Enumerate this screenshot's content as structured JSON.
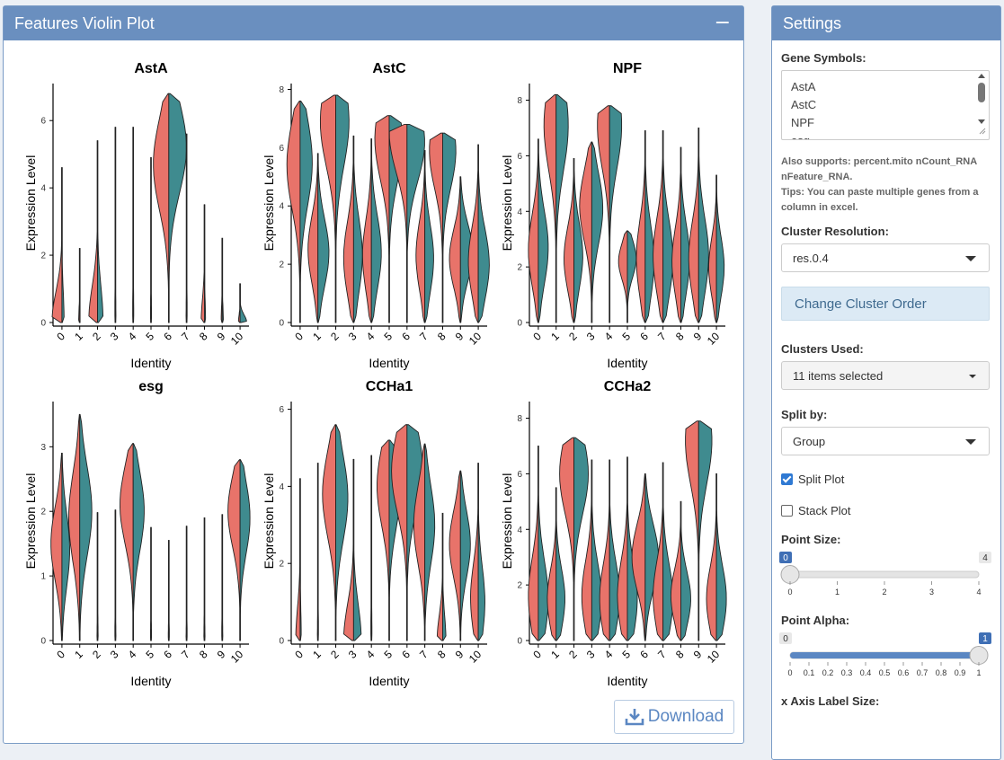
{
  "plot_panel": {
    "title": "Features Violin Plot",
    "collapse_icon": "minus-icon",
    "download_label": "Download",
    "download_icon": "download-icon"
  },
  "chart_data": {
    "type": "violin",
    "colors": {
      "group1": "#e8736a",
      "group2": "#3f8b8f"
    },
    "clusters": [
      "0",
      "1",
      "2",
      "3",
      "4",
      "5",
      "6",
      "7",
      "8",
      "9",
      "10"
    ],
    "xlabel": "Identity",
    "ylabel": "Expression Level",
    "panels": [
      {
        "title": "AstA",
        "ylim": [
          0,
          7.1
        ],
        "yticks": [
          0,
          2,
          4,
          6
        ],
        "violins": [
          [
            0,
            0,
            4.6,
            0.9,
            0.2
          ],
          [
            0,
            0,
            2.2,
            0.1,
            0
          ],
          [
            0,
            0,
            5.4,
            0.8,
            0.5
          ],
          [
            0,
            0,
            5.8,
            0.05,
            0.05
          ],
          [
            0,
            0,
            5.8,
            0.05,
            0.05
          ],
          [
            0,
            0,
            4.9,
            0.05,
            0.05
          ],
          [
            4.7,
            5.2,
            6.8,
            1.4,
            1.6
          ],
          [
            0,
            0,
            5.6,
            0.05,
            0.05
          ],
          [
            0,
            0,
            3.5,
            0.3,
            0.1
          ],
          [
            0,
            0,
            2.5,
            0.1,
            0.1
          ],
          [
            0,
            0,
            1.15,
            0.15,
            0.6
          ]
        ]
      },
      {
        "title": "AstC",
        "ylim": [
          0,
          8.2
        ],
        "yticks": [
          0,
          2,
          4,
          6,
          8
        ],
        "violins": [
          [
            5.4,
            5.5,
            7.6,
            1.2,
            1.1
          ],
          [
            2.5,
            2.4,
            5.8,
            0.9,
            1.0
          ],
          [
            6.9,
            6.9,
            7.8,
            1.4,
            1.2
          ],
          [
            2.2,
            2.3,
            6.4,
            0.9,
            0.8
          ],
          [
            2.3,
            2.4,
            6.3,
            0.8,
            0.9
          ],
          [
            6.3,
            6.2,
            7.1,
            1.3,
            1.2
          ],
          [
            6.5,
            6.2,
            6.8,
            1.6,
            1.6
          ],
          [
            2.3,
            2.2,
            5.9,
            0.8,
            0.8
          ],
          [
            5.9,
            5.9,
            6.5,
            1.2,
            1.2
          ],
          [
            2.2,
            2.4,
            5.0,
            1.0,
            1.1
          ],
          [
            2.1,
            2.0,
            6.1,
            0.9,
            1.0
          ]
        ]
      },
      {
        "title": "NPF",
        "ylim": [
          0,
          8.6
        ],
        "yticks": [
          0,
          2,
          4,
          6,
          8
        ],
        "violins": [
          [
            2.6,
            2.7,
            6.6,
            0.9,
            0.9
          ],
          [
            7.1,
            7.1,
            8.2,
            1.1,
            1.1
          ],
          [
            2.3,
            2.4,
            5.9,
            0.9,
            0.8
          ],
          [
            4.2,
            4.1,
            6.5,
            1.1,
            1.0
          ],
          [
            7.1,
            7.1,
            7.8,
            1.1,
            1.1
          ],
          [
            2.2,
            2.3,
            3.3,
            0.8,
            0.8
          ],
          [
            2.3,
            2.2,
            6.9,
            0.8,
            0.8
          ],
          [
            2.4,
            2.3,
            6.9,
            0.9,
            0.9
          ],
          [
            2.2,
            2.3,
            6.3,
            0.8,
            0.8
          ],
          [
            2.3,
            2.4,
            7.0,
            0.9,
            0.9
          ],
          [
            2.0,
            2.0,
            5.3,
            0.7,
            0.7
          ]
        ]
      },
      {
        "title": "esg",
        "ylim": [
          0,
          3.7
        ],
        "yticks": [
          0,
          1,
          2,
          3
        ],
        "violins": [
          [
            1.5,
            1.4,
            2.9,
            1.0,
            0.7
          ],
          [
            1.9,
            2.0,
            3.5,
            1.0,
            1.1
          ],
          [
            0,
            0,
            1.98,
            0.05,
            0.05
          ],
          [
            0,
            0,
            2.02,
            0.05,
            0.05
          ],
          [
            2.1,
            2.0,
            3.05,
            1.2,
            1.0
          ],
          [
            0,
            0,
            1.75,
            0.05,
            0.05
          ],
          [
            0,
            0,
            1.55,
            0.05,
            0.05
          ],
          [
            0,
            0,
            1.77,
            0.05,
            0.05
          ],
          [
            0,
            0,
            1.9,
            0.05,
            0.05
          ],
          [
            0,
            0,
            1.95,
            0.05,
            0.05
          ],
          [
            2.0,
            1.9,
            2.8,
            1.1,
            0.9
          ]
        ]
      },
      {
        "title": "CCHa1",
        "ylim": [
          0,
          6.2
        ],
        "yticks": [
          0,
          2,
          4,
          6
        ],
        "violins": [
          [
            0,
            0,
            4.2,
            0.4,
            0.1
          ],
          [
            0,
            0,
            4.6,
            0.05,
            0.05
          ],
          [
            3.8,
            3.7,
            5.6,
            1.2,
            1.1
          ],
          [
            0,
            0,
            4.7,
            0.9,
            0.7
          ],
          [
            0,
            0,
            4.8,
            0.05,
            0.05
          ],
          [
            4.0,
            3.9,
            5.2,
            1.1,
            1.0
          ],
          [
            4.4,
            4.5,
            5.6,
            1.4,
            1.4
          ],
          [
            3.0,
            3.0,
            5.1,
            1.0,
            0.9
          ],
          [
            0,
            0,
            3.3,
            0.5,
            0.3
          ],
          [
            2.5,
            2.5,
            4.4,
            1.0,
            0.9
          ],
          [
            1.1,
            1.0,
            4.6,
            0.7,
            0.6
          ]
        ]
      },
      {
        "title": "CCHa2",
        "ylim": [
          0,
          8.6
        ],
        "yticks": [
          0,
          2,
          4,
          6,
          8
        ],
        "violins": [
          [
            1.6,
            1.5,
            7.0,
            0.9,
            0.9
          ],
          [
            1.5,
            1.5,
            5.5,
            0.8,
            0.8
          ],
          [
            6.0,
            6.0,
            7.3,
            1.3,
            1.3
          ],
          [
            1.6,
            1.5,
            6.5,
            0.9,
            0.9
          ],
          [
            1.5,
            1.6,
            6.5,
            0.9,
            0.9
          ],
          [
            1.6,
            1.5,
            6.6,
            0.9,
            0.9
          ],
          [
            3.0,
            3.0,
            6.0,
            1.2,
            1.2
          ],
          [
            1.6,
            1.5,
            6.4,
            0.9,
            0.9
          ],
          [
            1.6,
            1.5,
            5.0,
            0.9,
            0.9
          ],
          [
            7.2,
            7.2,
            7.9,
            1.2,
            1.2
          ],
          [
            1.5,
            1.5,
            6.0,
            0.9,
            0.9
          ]
        ]
      }
    ]
  },
  "settings": {
    "title": "Settings",
    "gene_symbols_label": "Gene Symbols:",
    "gene_lines": [
      "AstA",
      "AstC",
      "NPF",
      "esg"
    ],
    "hint1": "Also supports: percent.mito nCount_RNA nFeature_RNA.",
    "hint2": "Tips: You can paste multiple genes from a column in excel.",
    "cluster_res_label": "Cluster Resolution:",
    "cluster_res_value": "res.0.4",
    "change_order_label": "Change Cluster Order",
    "clusters_used_label": "Clusters Used:",
    "clusters_used_value": "11 items selected",
    "split_by_label": "Split by:",
    "split_by_value": "Group",
    "split_plot_label": "Split Plot",
    "split_plot_checked": true,
    "stack_plot_label": "Stack Plot",
    "stack_plot_checked": false,
    "point_size_label": "Point Size:",
    "point_size": {
      "min": "0",
      "max": "4",
      "value": "0",
      "fraction": 0,
      "ticks": [
        "0",
        "1",
        "2",
        "3",
        "4"
      ]
    },
    "point_alpha_label": "Point Alpha:",
    "point_alpha": {
      "min": "0",
      "max": "1",
      "value": "1",
      "fraction": 1,
      "ticks": [
        "0",
        "0.1",
        "0.2",
        "0.3",
        "0.4",
        "0.5",
        "0.6",
        "0.7",
        "0.8",
        "0.9",
        "1"
      ]
    },
    "x_axis_label_size_label": "x Axis Label Size:"
  }
}
